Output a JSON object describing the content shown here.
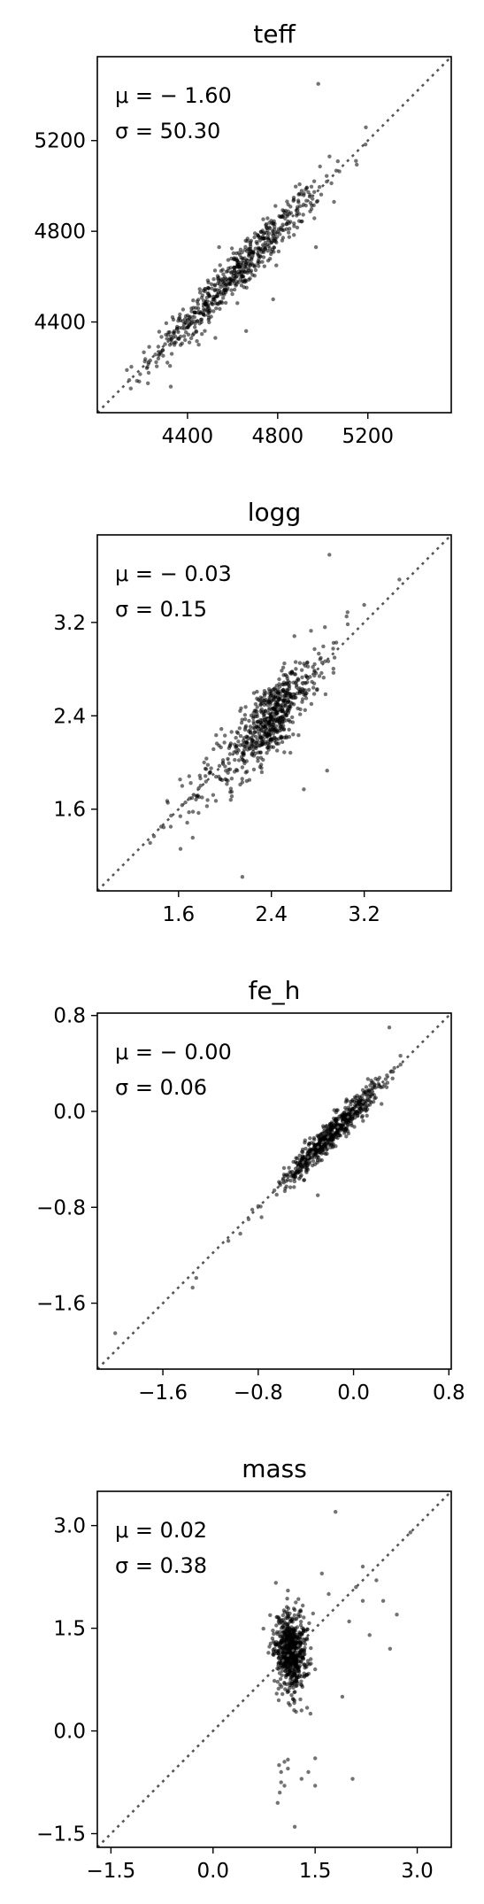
{
  "chart_data": [
    {
      "type": "scatter",
      "title": "teff",
      "xlim": [
        4000,
        5570
      ],
      "ylim": [
        4000,
        5570
      ],
      "xticks": [
        4400,
        4800,
        5200
      ],
      "yticks": [
        4400,
        4800,
        5200
      ],
      "xtick_labels": [
        "4400",
        "4800",
        "5200"
      ],
      "ytick_labels": [
        "4400",
        "4800",
        "5200"
      ],
      "stats": {
        "mu": "μ = − 1.60",
        "sigma": "σ = 50.30"
      },
      "n_points": 700,
      "spread": 50.3,
      "identity_line": true,
      "points": [
        [
          4980,
          5450
        ],
        [
          4970,
          4730
        ],
        [
          4450,
          4300
        ],
        [
          4780,
          4500
        ],
        [
          4660,
          4360
        ],
        [
          4230,
          4290
        ],
        [
          5050,
          4930
        ],
        [
          4540,
          4730
        ]
      ],
      "clusters": [
        {
          "cx": 4620,
          "cy": 4620,
          "sx": 190,
          "sy": 190,
          "frac": 0.9
        }
      ]
    },
    {
      "type": "scatter",
      "title": "logg",
      "xlim": [
        0.9,
        3.95
      ],
      "ylim": [
        0.9,
        3.95
      ],
      "xticks": [
        1.6,
        2.4,
        3.2
      ],
      "yticks": [
        1.6,
        2.4,
        3.2
      ],
      "xtick_labels": [
        "1.6",
        "2.4",
        "3.2"
      ],
      "ytick_labels": [
        "1.6",
        "2.4",
        "3.2"
      ],
      "stats": {
        "mu": "μ = − 0.03",
        "sigma": "σ = 0.15"
      },
      "n_points": 700,
      "spread": 0.15,
      "identity_line": true,
      "points": [
        [
          2.15,
          1.02
        ],
        [
          2.9,
          3.78
        ],
        [
          2.88,
          1.93
        ],
        [
          2.68,
          1.77
        ],
        [
          1.82,
          2.0
        ],
        [
          1.45,
          1.45
        ],
        [
          2.05,
          1.68
        ],
        [
          3.2,
          3.35
        ]
      ],
      "clusters": [
        {
          "cx": 2.4,
          "cy": 2.37,
          "sx": 0.12,
          "sy": 0.12,
          "frac": 0.5
        },
        {
          "cx": 2.35,
          "cy": 2.35,
          "sx": 0.36,
          "sy": 0.36,
          "frac": 0.5
        }
      ]
    },
    {
      "type": "scatter",
      "title": "fe_h",
      "xlim": [
        -2.15,
        0.82
      ],
      "ylim": [
        -2.15,
        0.82
      ],
      "xticks": [
        -1.6,
        -0.8,
        0.0,
        0.8
      ],
      "yticks": [
        -1.6,
        -0.8,
        0.0,
        0.8
      ],
      "xtick_labels": [
        "−1.6",
        "−0.8",
        "0.0",
        "0.8"
      ],
      "ytick_labels": [
        "−1.6",
        "−0.8",
        "0.0",
        "0.8"
      ],
      "stats": {
        "mu": "μ = − 0.00",
        "sigma": "σ = 0.06"
      },
      "n_points": 650,
      "spread": 0.06,
      "identity_line": true,
      "points": [
        [
          -2.0,
          -1.85
        ],
        [
          -1.32,
          -1.39
        ],
        [
          -1.35,
          -1.47
        ],
        [
          -1.05,
          -1.08
        ],
        [
          -0.95,
          -1.02
        ],
        [
          -0.88,
          -0.9
        ],
        [
          -0.3,
          -0.7
        ],
        [
          0.3,
          0.7
        ],
        [
          -0.85,
          -0.82
        ],
        [
          -0.8,
          -0.79
        ]
      ],
      "clusters": [
        {
          "cx": -0.18,
          "cy": -0.18,
          "sx": 0.2,
          "sy": 0.2,
          "frac": 1.0
        }
      ]
    },
    {
      "type": "scatter",
      "title": "mass",
      "xlim": [
        -1.7,
        3.5
      ],
      "ylim": [
        -1.7,
        3.5
      ],
      "xticks": [
        -1.5,
        0.0,
        1.5,
        3.0
      ],
      "yticks": [
        -1.5,
        0.0,
        1.5,
        3.0
      ],
      "xtick_labels": [
        "−1.5",
        "0.0",
        "1.5",
        "3.0"
      ],
      "ytick_labels": [
        "−1.5",
        "0.0",
        "1.5",
        "3.0"
      ],
      "stats": {
        "mu": "μ = 0.02",
        "sigma": "σ = 0.38"
      },
      "n_points": 650,
      "spread": 0.15,
      "identity_line": true,
      "points": [
        [
          1.05,
          -0.45
        ],
        [
          1.0,
          -0.6
        ],
        [
          1.0,
          -0.75
        ],
        [
          0.98,
          -0.9
        ],
        [
          0.95,
          -1.05
        ],
        [
          0.97,
          -0.5
        ],
        [
          1.1,
          -0.42
        ],
        [
          1.1,
          -0.55
        ],
        [
          1.05,
          -0.8
        ],
        [
          1.4,
          -0.6
        ],
        [
          1.3,
          -0.7
        ],
        [
          1.5,
          -0.8
        ],
        [
          1.5,
          -0.4
        ],
        [
          1.2,
          -1.4
        ],
        [
          2.05,
          -0.7
        ],
        [
          1.8,
          3.2
        ],
        [
          2.9,
          2.9
        ],
        [
          2.5,
          1.9
        ],
        [
          2.2,
          2.4
        ],
        [
          2.0,
          1.6
        ],
        [
          1.7,
          2.0
        ],
        [
          1.6,
          2.3
        ],
        [
          2.3,
          1.4
        ],
        [
          2.6,
          1.2
        ],
        [
          2.1,
          2.1
        ],
        [
          1.9,
          0.5
        ],
        [
          1.3,
          0.3
        ],
        [
          1.1,
          2.05
        ],
        [
          2.4,
          2.2
        ],
        [
          2.7,
          1.7
        ],
        [
          1.5,
          0.9
        ],
        [
          2.2,
          1.9
        ]
      ],
      "clusters": [
        {
          "cx": 1.15,
          "cy": 1.15,
          "sx": 0.12,
          "sy": 0.28,
          "frac": 1.0
        }
      ]
    }
  ]
}
